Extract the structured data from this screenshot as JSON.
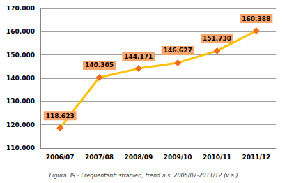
{
  "chart_data": {
    "type": "line",
    "title": "Figura 39 - Frequentanti stranieri, trend a.s. 2006/07-2011/12 (v.a.)",
    "categories": [
      "2006/07",
      "2007/08",
      "2008/09",
      "2009/10",
      "2010/11",
      "2011/12"
    ],
    "values": [
      118623,
      140305,
      144171,
      146627,
      151730,
      160388
    ],
    "value_labels": [
      "118.623",
      "140.305",
      "144.171",
      "146.627",
      "151.730",
      "160.388"
    ],
    "color": "#FFC000",
    "marker": "diamond",
    "data_labels": true,
    "ylim": [
      110000,
      170000
    ],
    "yticks": [
      {
        "value": 110000,
        "label": "110.000"
      },
      {
        "value": 120000,
        "label": "120.000"
      },
      {
        "value": 130000,
        "label": "130.000"
      },
      {
        "value": 140000,
        "label": "140.000"
      },
      {
        "value": 150000,
        "label": "150.000"
      },
      {
        "value": 160000,
        "label": "160.000"
      },
      {
        "value": 170000,
        "label": "170.000"
      }
    ],
    "grid": true
  }
}
